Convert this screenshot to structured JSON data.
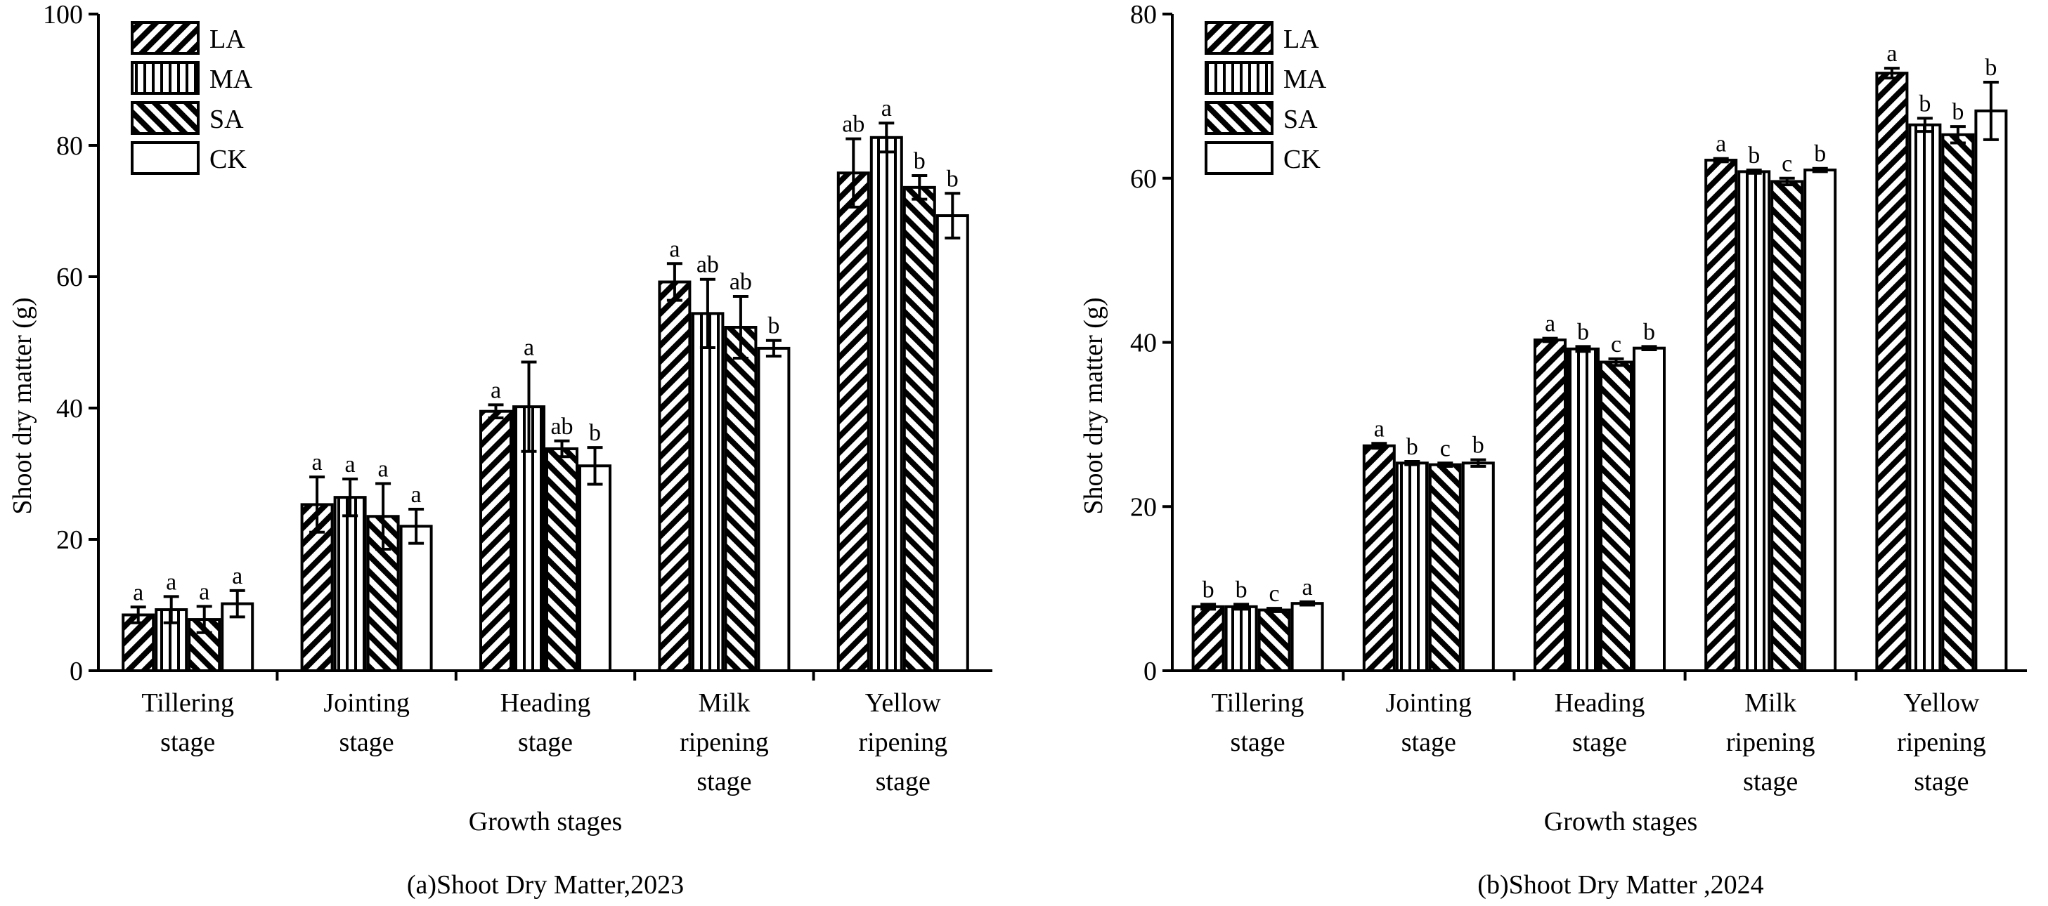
{
  "figure": {
    "legend_entries": [
      "LA",
      "MA",
      "SA",
      "CK"
    ],
    "patterns": {
      "LA": "diagonal-backslash",
      "MA": "vertical",
      "SA": "diagonal-slash",
      "CK": "solid-white"
    }
  },
  "chart_data": [
    {
      "type": "bar",
      "title": "(a)Shoot Dry Matter,2023",
      "xlabel": "Growth stages",
      "ylabel": "Shoot dry matter (g)",
      "ylim": [
        0,
        100
      ],
      "yticks": [
        "0",
        "20",
        "40",
        "60",
        "80",
        "100"
      ],
      "legend_position": "top-left",
      "categories": [
        [
          "Tillering",
          "stage"
        ],
        [
          "Jointing",
          "stage"
        ],
        [
          "Heading",
          "stage"
        ],
        [
          "Milk",
          "ripening",
          "stage"
        ],
        [
          "Yellow",
          "ripening",
          "stage"
        ]
      ],
      "series": [
        {
          "name": "LA",
          "values": [
            8.5,
            25.3,
            39.5,
            59.2,
            75.8
          ],
          "errors": [
            1.2,
            4.2,
            1.0,
            2.8,
            5.2
          ],
          "labels": [
            "a",
            "a",
            "a",
            "a",
            "ab"
          ]
        },
        {
          "name": "MA",
          "values": [
            9.3,
            26.4,
            40.2,
            54.4,
            81.2
          ],
          "errors": [
            2.0,
            2.8,
            6.8,
            5.2,
            2.2
          ],
          "labels": [
            "a",
            "a",
            "a",
            "ab",
            "a"
          ]
        },
        {
          "name": "SA",
          "values": [
            7.8,
            23.5,
            33.8,
            52.3,
            73.6
          ],
          "errors": [
            2.0,
            5.0,
            1.2,
            4.7,
            1.8
          ],
          "labels": [
            "a",
            "a",
            "ab",
            "ab",
            "b"
          ]
        },
        {
          "name": "CK",
          "values": [
            10.2,
            22.0,
            31.2,
            49.1,
            69.3
          ],
          "errors": [
            2.0,
            2.6,
            2.8,
            1.2,
            3.4
          ],
          "labels": [
            "a",
            "a",
            "b",
            "b",
            "b"
          ]
        }
      ]
    },
    {
      "type": "bar",
      "title": "(b)Shoot Dry Matter ,2024",
      "xlabel": "Growth stages",
      "ylabel": "Shoot dry matter (g)",
      "ylim": [
        0,
        80
      ],
      "yticks": [
        "0",
        "20",
        "40",
        "60",
        "80"
      ],
      "legend_position": "top-left",
      "categories": [
        [
          "Tillering",
          "stage"
        ],
        [
          "Jointing",
          "stage"
        ],
        [
          "Heading",
          "stage"
        ],
        [
          "Milk",
          "ripening",
          "stage"
        ],
        [
          "Yellow",
          "ripening",
          "stage"
        ]
      ],
      "series": [
        {
          "name": "LA",
          "values": [
            7.8,
            27.4,
            40.3,
            62.2,
            72.8
          ],
          "errors": [
            0.3,
            0.3,
            0.2,
            0.2,
            0.6
          ],
          "labels": [
            "b",
            "a",
            "a",
            "a",
            "a"
          ]
        },
        {
          "name": "MA",
          "values": [
            7.8,
            25.3,
            39.2,
            60.8,
            66.5
          ],
          "errors": [
            0.3,
            0.2,
            0.3,
            0.2,
            0.8
          ],
          "labels": [
            "b",
            "b",
            "b",
            "b",
            "b"
          ]
        },
        {
          "name": "SA",
          "values": [
            7.4,
            25.1,
            37.6,
            59.6,
            65.3
          ],
          "errors": [
            0.2,
            0.2,
            0.4,
            0.4,
            1.0
          ],
          "labels": [
            "c",
            "c",
            "c",
            "c",
            "b"
          ]
        },
        {
          "name": "CK",
          "values": [
            8.2,
            25.3,
            39.3,
            61.0,
            68.2
          ],
          "errors": [
            0.2,
            0.4,
            0.2,
            0.2,
            3.5
          ],
          "labels": [
            "a",
            "b",
            "b",
            "b",
            "b"
          ]
        }
      ]
    }
  ]
}
